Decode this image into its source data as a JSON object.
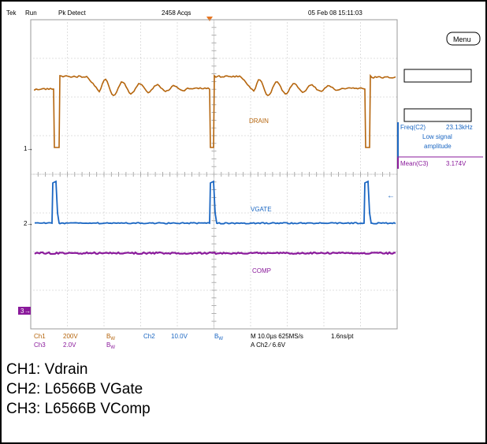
{
  "status_bar": {
    "brand": "Tek",
    "run_state": "Run",
    "acq_mode": "Pk Detect",
    "acq_count": "2458 Acqs",
    "datetime": "05 Feb 08 15:11:03"
  },
  "side_panel": {
    "menu_label": "Menu",
    "freq_label": "Freq(C2)",
    "freq_value": "23.13kHz",
    "freq_note_1": "Low signal",
    "freq_note_2": "amplitude",
    "mean_label": "Mean(C3)",
    "mean_value": "3.174V"
  },
  "waveform_labels": {
    "drain": "DRAIN",
    "vgate": "VGATE",
    "comp": "COMP"
  },
  "channel_markers": {
    "ch1": "1",
    "ch2": "2",
    "ch3": "3"
  },
  "settings": {
    "ch1_name": "Ch1",
    "ch1_scale": "200V",
    "ch1_bw": "B",
    "ch3_name": "Ch3",
    "ch3_scale": "2.0V",
    "ch3_bw": "B",
    "ch2_name": "Ch2",
    "ch2_scale": "10.0V",
    "ch2_bw": "B",
    "bw_sub": "W",
    "timebase": "M 10.0µs 625MS/s",
    "resolution": "1.6ns/pt",
    "trigger": "A  Ch2  ∕  6.6V"
  },
  "caption": {
    "line1": "CH1: Vdrain",
    "line2": "CH2: L6566B VGate",
    "line3": "CH3: L6566B VComp"
  },
  "colors": {
    "ch1": "#b5650d",
    "ch2": "#1a66c2",
    "ch3": "#8a1a9b",
    "trigger_marker": "#e87722"
  }
}
